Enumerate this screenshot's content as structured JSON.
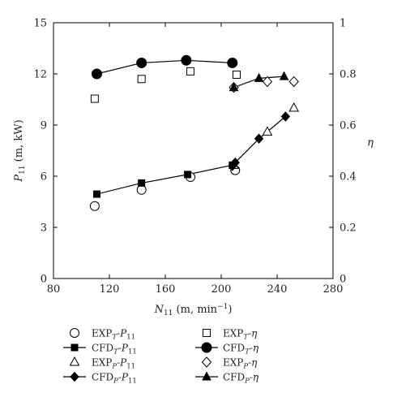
{
  "chart_data": {
    "type": "scatter",
    "x_axis": {
      "label_main": "N",
      "label_sub": "11",
      "label_units": " (m, min",
      "label_sup": "−1",
      "label_close": ")",
      "range": [
        80,
        280
      ],
      "ticks": [
        80,
        120,
        160,
        200,
        240,
        280
      ]
    },
    "y_left": {
      "label_main": "P",
      "label_sub": "11",
      "label_units": " (m, kW)",
      "range": [
        0,
        15
      ],
      "ticks": [
        0,
        3,
        6,
        9,
        12,
        15
      ]
    },
    "y_right": {
      "label": "η",
      "range": [
        0,
        1
      ],
      "ticks": [
        "0",
        "0.2",
        "0.4",
        "0.6",
        "0.8",
        "1"
      ],
      "tick_values": [
        0,
        0.2,
        0.4,
        0.6,
        0.8,
        1
      ]
    },
    "grid": false,
    "series": [
      {
        "name": "EXP_T-P_11",
        "label_a": "EXP",
        "label_sub": "T",
        "label_b": "-P",
        "label_sub2": "11",
        "axis": "left",
        "marker": "circle-open",
        "line": false,
        "x": [
          109.5,
          143,
          178,
          210
        ],
        "y": [
          4.25,
          5.2,
          5.95,
          6.35
        ]
      },
      {
        "name": "CFD_T-P_11",
        "label_a": "CFD",
        "label_sub": "T",
        "label_b": "-P",
        "label_sub2": "11",
        "axis": "left",
        "marker": "square-filled",
        "line": true,
        "x": [
          111,
          143,
          176,
          208
        ],
        "y": [
          4.95,
          5.6,
          6.1,
          6.65
        ]
      },
      {
        "name": "EXP_P-P_11",
        "label_a": "EXP",
        "label_sub": "P",
        "label_b": "-P",
        "label_sub2": "11",
        "axis": "left",
        "marker": "triangle-open",
        "line": false,
        "x": [
          209,
          233,
          252
        ],
        "y": [
          6.65,
          8.6,
          10.0
        ]
      },
      {
        "name": "CFD_P-P_11",
        "label_a": "CFD",
        "label_sub": "P",
        "label_b": "-P",
        "label_sub2": "11",
        "axis": "left",
        "marker": "diamond-filled",
        "line": true,
        "x": [
          208,
          210,
          227,
          246
        ],
        "y": [
          6.6,
          6.8,
          8.2,
          9.5
        ]
      },
      {
        "name": "EXP_T-η",
        "label_a": "EXP",
        "label_sub": "T",
        "label_b": "-η",
        "label_sub2": "",
        "axis": "right",
        "marker": "square-open",
        "line": false,
        "x": [
          109.5,
          143,
          178,
          211
        ],
        "y": [
          0.703,
          0.78,
          0.81,
          0.797
        ]
      },
      {
        "name": "CFD_T-η",
        "label_a": "CFD",
        "label_sub": "T",
        "label_b": "-η",
        "label_sub2": "",
        "axis": "right",
        "marker": "circle-filled",
        "line": true,
        "x": [
          111,
          143,
          175,
          208
        ],
        "y": [
          0.8,
          0.843,
          0.853,
          0.843
        ]
      },
      {
        "name": "EXP_P-η",
        "label_a": "EXP",
        "label_sub": "P",
        "label_b": "-η",
        "label_sub2": "",
        "axis": "right",
        "marker": "diamond-open",
        "line": false,
        "x": [
          209,
          233,
          252
        ],
        "y": [
          0.747,
          0.77,
          0.77
        ]
      },
      {
        "name": "CFD_P-η",
        "label_a": "CFD",
        "label_sub": "P",
        "label_b": "-η",
        "label_sub2": "",
        "axis": "right",
        "marker": "triangle-filled",
        "line": true,
        "x": [
          209,
          227,
          245
        ],
        "y": [
          0.747,
          0.783,
          0.79
        ]
      }
    ]
  }
}
